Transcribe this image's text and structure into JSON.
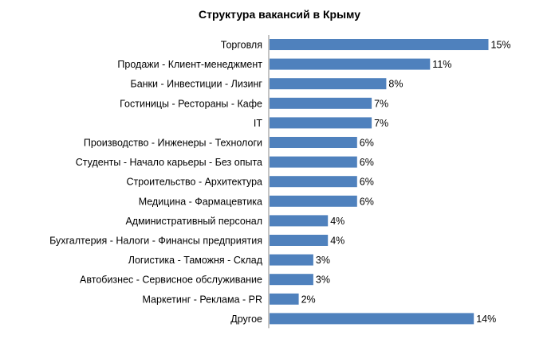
{
  "chart_data": {
    "type": "bar",
    "orientation": "horizontal",
    "title": "Структура вакансий в Крыму",
    "categories": [
      "Торговля",
      "Продажи - Клиент-менеджмент",
      "Банки - Инвестиции - Лизинг",
      "Гостиницы - Рестораны - Кафе",
      "IT",
      "Производство - Инженеры - Технологи",
      "Студенты - Начало карьеры - Без опыта",
      "Строительство - Архитектура",
      "Медицина - Фармацевтика",
      "Административный персонал",
      "Бухгалтерия - Налоги - Финансы предприятия",
      "Логистика - Таможня - Склад",
      "Автобизнес - Сервисное обслуживание",
      "Маркетинг - Реклама - PR",
      "Другое"
    ],
    "values": [
      15,
      11,
      8,
      7,
      7,
      6,
      6,
      6,
      6,
      4,
      4,
      3,
      3,
      2,
      14
    ],
    "value_labels": [
      "15%",
      "11%",
      "8%",
      "7%",
      "7%",
      "6%",
      "6%",
      "6%",
      "6%",
      "4%",
      "4%",
      "3%",
      "3%",
      "2%",
      "14%"
    ],
    "xlabel": "",
    "ylabel": "",
    "unit": "%",
    "grid": false,
    "legend": "none",
    "bar_color": "#4f81bd"
  }
}
